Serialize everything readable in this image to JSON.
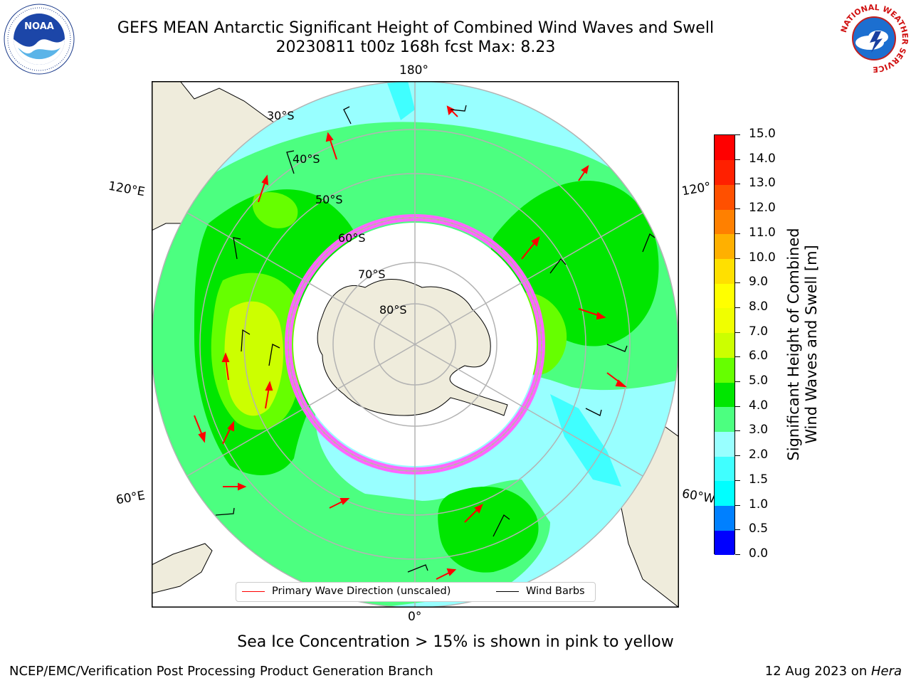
{
  "header": {
    "title_line1": "GEFS MEAN Antarctic Significant Height of Combined Wind Waves and Swell",
    "title_line2": "20230811 t00z 168h fcst   Max: 8.23"
  },
  "logos": {
    "left": {
      "icon": "noaa-logo",
      "text": "NOAA"
    },
    "right": {
      "icon": "national-weather-service-logo",
      "text": "NATIONAL WEATHER SERVICE"
    }
  },
  "map": {
    "projection": "south-polar-stereographic",
    "longitude_labels": {
      "top": "180°",
      "bottom": "0°",
      "left_upper": "120°E",
      "left_lower": "60°E",
      "right_upper": "120°",
      "right_lower": "60°W"
    },
    "latitude_labels": [
      "30°S",
      "40°S",
      "50°S",
      "60°S",
      "70°S",
      "80°S"
    ],
    "colors": {
      "ocean_land": "#efecdc",
      "sea_ice_low": "#ff66ff",
      "arrow": "#ff0000",
      "barb": "#000000",
      "graticule": "#b3b3b3"
    }
  },
  "legend": {
    "primary_wave": "Primary Wave Direction (unscaled)",
    "wind_barbs": "Wind Barbs"
  },
  "colorbar": {
    "label_line1": "Significant Height of Combined",
    "label_line2": "Wind Waves and Swell [m]",
    "ticks": [
      "0.0",
      "0.5",
      "1.0",
      "1.5",
      "2.0",
      "3.0",
      "4.0",
      "5.0",
      "6.0",
      "7.0",
      "8.0",
      "9.0",
      "10.0",
      "11.0",
      "12.0",
      "13.0",
      "14.0",
      "15.0"
    ],
    "colors": [
      "#0000ff",
      "#0080ff",
      "#00ffff",
      "#40ffff",
      "#98ffff",
      "#4cff80",
      "#00e600",
      "#66ff00",
      "#ccff00",
      "#f0ff00",
      "#ffff00",
      "#ffe000",
      "#ffb000",
      "#ff8000",
      "#ff5000",
      "#ff2000",
      "#ff0000"
    ]
  },
  "footnote": "Sea Ice Concentration > 15% is shown in pink to yellow",
  "footer": {
    "left": "NCEP/EMC/Verification Post Processing Product Generation Branch",
    "right_prefix": "12 Aug 2023 on ",
    "right_host": "Hera"
  }
}
